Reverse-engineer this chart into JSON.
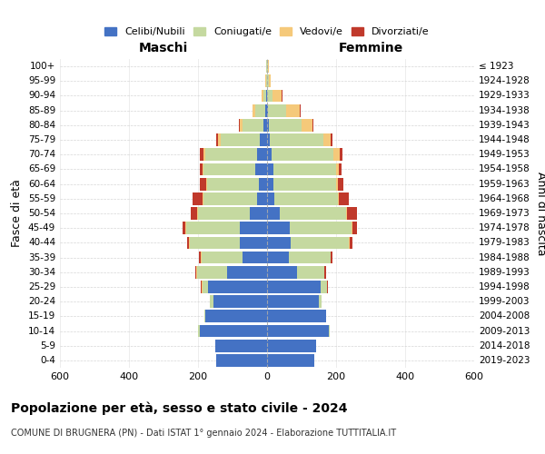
{
  "age_groups": [
    "100+",
    "95-99",
    "90-94",
    "85-89",
    "80-84",
    "75-79",
    "70-74",
    "65-69",
    "60-64",
    "55-59",
    "50-54",
    "45-49",
    "40-44",
    "35-39",
    "30-34",
    "25-29",
    "20-24",
    "15-19",
    "10-14",
    "5-9",
    "0-4"
  ],
  "birth_years": [
    "≤ 1923",
    "1924-1928",
    "1929-1933",
    "1934-1938",
    "1939-1943",
    "1944-1948",
    "1949-1953",
    "1954-1958",
    "1959-1963",
    "1964-1968",
    "1969-1973",
    "1974-1978",
    "1979-1983",
    "1984-1988",
    "1989-1993",
    "1994-1998",
    "1999-2003",
    "2004-2008",
    "2009-2013",
    "2014-2018",
    "2019-2023"
  ],
  "colors": {
    "celibe": "#4472C4",
    "coniugato": "#c5d9a0",
    "vedovo": "#f5c97a",
    "divorziato": "#c0392b"
  },
  "maschi": {
    "celibe": [
      1,
      1,
      3,
      5,
      10,
      20,
      30,
      35,
      25,
      30,
      50,
      80,
      80,
      70,
      115,
      170,
      155,
      180,
      195,
      150,
      148
    ],
    "coniugato": [
      1,
      2,
      8,
      28,
      60,
      115,
      150,
      148,
      150,
      155,
      150,
      155,
      145,
      120,
      88,
      18,
      12,
      2,
      4,
      0,
      0
    ],
    "vedovo": [
      0,
      2,
      5,
      10,
      8,
      6,
      5,
      3,
      2,
      2,
      3,
      2,
      1,
      1,
      1,
      1,
      0,
      0,
      0,
      0,
      0
    ],
    "divorziato": [
      0,
      0,
      0,
      0,
      4,
      7,
      10,
      10,
      18,
      28,
      18,
      8,
      6,
      7,
      4,
      2,
      0,
      0,
      0,
      0,
      0
    ]
  },
  "femmine": {
    "nubile": [
      0,
      0,
      1,
      2,
      4,
      8,
      12,
      18,
      18,
      22,
      38,
      65,
      68,
      62,
      88,
      155,
      150,
      170,
      180,
      142,
      138
    ],
    "coniugata": [
      2,
      4,
      14,
      52,
      95,
      155,
      180,
      182,
      182,
      182,
      190,
      180,
      170,
      122,
      78,
      18,
      8,
      2,
      1,
      0,
      0
    ],
    "vedova": [
      2,
      7,
      28,
      42,
      32,
      22,
      18,
      9,
      4,
      4,
      4,
      2,
      2,
      1,
      1,
      0,
      0,
      0,
      0,
      0,
      0
    ],
    "divorziata": [
      0,
      0,
      1,
      2,
      2,
      4,
      8,
      8,
      18,
      28,
      28,
      13,
      8,
      4,
      4,
      2,
      0,
      0,
      0,
      0,
      0
    ]
  },
  "xlim": 600,
  "title": "Popolazione per età, sesso e stato civile - 2024",
  "subtitle": "COMUNE DI BRUGNERA (PN) - Dati ISTAT 1° gennaio 2024 - Elaborazione TUTTITALIA.IT",
  "ylabel_left": "Fasce di età",
  "ylabel_right": "Anni di nascita",
  "xlabel_maschi": "Maschi",
  "xlabel_femmine": "Femmine"
}
